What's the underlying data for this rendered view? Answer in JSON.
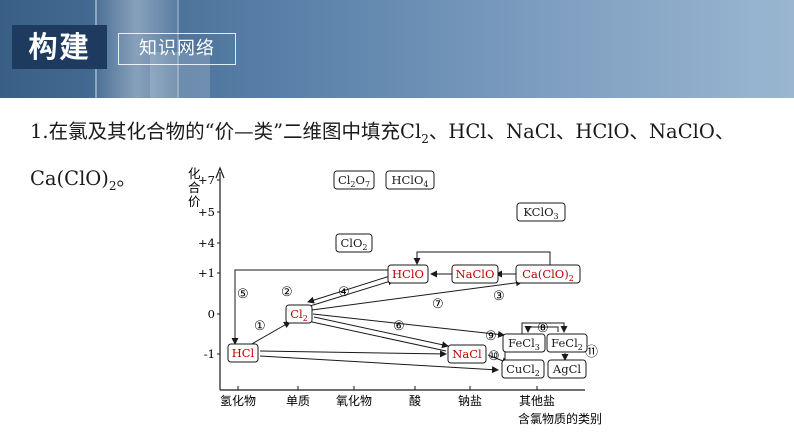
{
  "header": {
    "title": "构建",
    "subtitle": "知识网络"
  },
  "question": {
    "part1": "1.在氯及其化合物的“价—类”二维图中填充Cl",
    "sub1": "2",
    "part2": "、HCl、NaCl、HClO、NaClO、",
    "part3": "Ca(ClO)",
    "sub2": "2",
    "part4": "。"
  },
  "diagram": {
    "y_axis_label": [
      "化",
      "合",
      "价"
    ],
    "y_ticks": [
      "+7",
      "+5",
      "+4",
      "+1",
      "0",
      "-1"
    ],
    "x_categories": [
      "氢化物",
      "单质",
      "氧化物",
      "酸",
      "钠盐",
      "其他盐"
    ],
    "x_axis_label": "含氯物质的类别",
    "boxes": {
      "cl2o7": {
        "main": "Cl",
        "sub1": "2",
        "mid": "O",
        "sub2": "7"
      },
      "hclo4": {
        "main": "HClO",
        "sub": "4"
      },
      "kclo3": {
        "main": "KClO",
        "sub": "3"
      },
      "clo2": {
        "main": "ClO",
        "sub": "2"
      },
      "hclo": {
        "main": "HClO"
      },
      "naclo": {
        "main": "NaClO"
      },
      "caclo2": {
        "main": "Ca(ClO)",
        "sub": "2"
      },
      "cl2": {
        "main": "Cl",
        "sub": "2"
      },
      "hcl": {
        "main": "HCl"
      },
      "nacl": {
        "main": "NaCl"
      },
      "fecl3": {
        "main": "FeCl",
        "sub": "3"
      },
      "fecl2": {
        "main": "FeCl",
        "sub": "2"
      },
      "cucl2": {
        "main": "CuCl",
        "sub": "2"
      },
      "agcl": {
        "main": "AgCl"
      }
    },
    "step_labels": [
      "①",
      "②",
      "③",
      "④",
      "⑤",
      "⑥",
      "⑦",
      "⑧",
      "⑨",
      "⑩",
      "⑪"
    ],
    "colors": {
      "answer_text": "#c00000",
      "line": "#1a1a1a"
    }
  }
}
